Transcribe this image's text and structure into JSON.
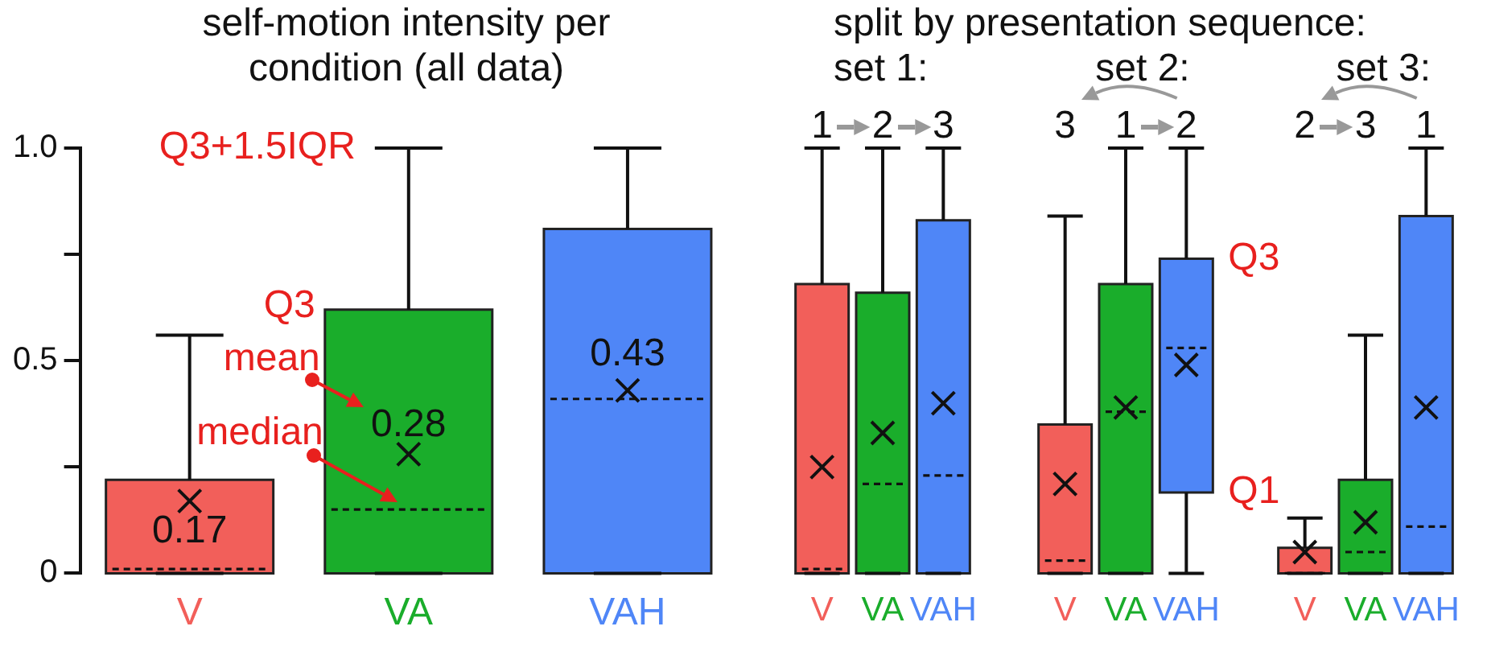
{
  "chart_data": [
    {
      "type": "box",
      "title": "self-motion intensity per condition (all data)",
      "categories": [
        "V",
        "VA",
        "VAH"
      ],
      "colors": [
        "#f25f5a",
        "#1aad2b",
        "#4f86f7"
      ],
      "boxes": [
        {
          "low": 0,
          "q1": 0,
          "median": 0.01,
          "q3": 0.22,
          "high": 0.56,
          "mean": 0.17
        },
        {
          "low": 0,
          "q1": 0,
          "median": 0.15,
          "q3": 0.62,
          "high": 1,
          "mean": 0.28
        },
        {
          "low": 0,
          "q1": 0,
          "median": 0.41,
          "q3": 0.81,
          "high": 1,
          "mean": 0.43
        }
      ],
      "ylim": [
        0,
        1
      ],
      "yticks": [
        0,
        {
          "value": 0.25,
          "label": null
        },
        0.5,
        {
          "value": 0.75,
          "label": null
        },
        {
          "value": 1,
          "label": "1.0"
        }
      ],
      "marker": "cross",
      "annotations": [
        "Q3+1.5IQR",
        "Q3",
        "mean",
        "median",
        "0.17",
        "0.28",
        "0.43"
      ]
    },
    {
      "type": "box",
      "title": "split by presentation sequence:",
      "subtitle": "set 1:",
      "categories": [
        "V",
        "VA",
        "VAH"
      ],
      "colors": [
        "#f25f5a",
        "#1aad2b",
        "#4f86f7"
      ],
      "boxes": [
        {
          "low": 0,
          "q1": 0,
          "median": 0.01,
          "q3": 0.68,
          "high": 1,
          "mean": 0.25
        },
        {
          "low": 0,
          "q1": 0,
          "median": 0.21,
          "q3": 0.66,
          "high": 1,
          "mean": 0.33
        },
        {
          "low": 0,
          "q1": 0,
          "median": 0.23,
          "q3": 0.83,
          "high": 1,
          "mean": 0.4
        }
      ],
      "ylim": [
        0,
        1
      ],
      "tick_labels": "x",
      "marker": "cross",
      "annotations": [
        "1",
        "2",
        "3"
      ]
    },
    {
      "type": "box",
      "title": "set 2:",
      "categories": [
        "V",
        "VA",
        "VAH"
      ],
      "colors": [
        "#f25f5a",
        "#1aad2b",
        "#4f86f7"
      ],
      "boxes": [
        {
          "low": 0,
          "q1": 0,
          "median": 0.03,
          "q3": 0.35,
          "high": 0.84,
          "mean": 0.21
        },
        {
          "low": 0,
          "q1": 0,
          "median": 0.38,
          "q3": 0.68,
          "high": 1,
          "mean": 0.39
        },
        {
          "low": 0,
          "q1": 0.19,
          "median": 0.53,
          "q3": 0.74,
          "high": 1,
          "mean": 0.49
        }
      ],
      "ylim": [
        0,
        1
      ],
      "tick_labels": "x",
      "marker": "cross",
      "annotations": [
        "3",
        "1",
        "2",
        "Q3",
        "Q1"
      ]
    },
    {
      "type": "box",
      "title": "set 3:",
      "categories": [
        "V",
        "VA",
        "VAH"
      ],
      "colors": [
        "#f25f5a",
        "#1aad2b",
        "#4f86f7"
      ],
      "boxes": [
        {
          "low": 0,
          "q1": 0,
          "median": 0,
          "q3": 0.06,
          "high": 0.13,
          "mean": 0.05
        },
        {
          "low": 0,
          "q1": 0,
          "median": 0.05,
          "q3": 0.22,
          "high": 0.56,
          "mean": 0.12
        },
        {
          "low": 0,
          "q1": 0,
          "median": 0.11,
          "q3": 0.84,
          "high": 1,
          "mean": 0.39
        }
      ],
      "ylim": [
        0,
        1
      ],
      "tick_labels": "x",
      "marker": "cross",
      "annotations": [
        "2",
        "3",
        "1"
      ]
    }
  ]
}
